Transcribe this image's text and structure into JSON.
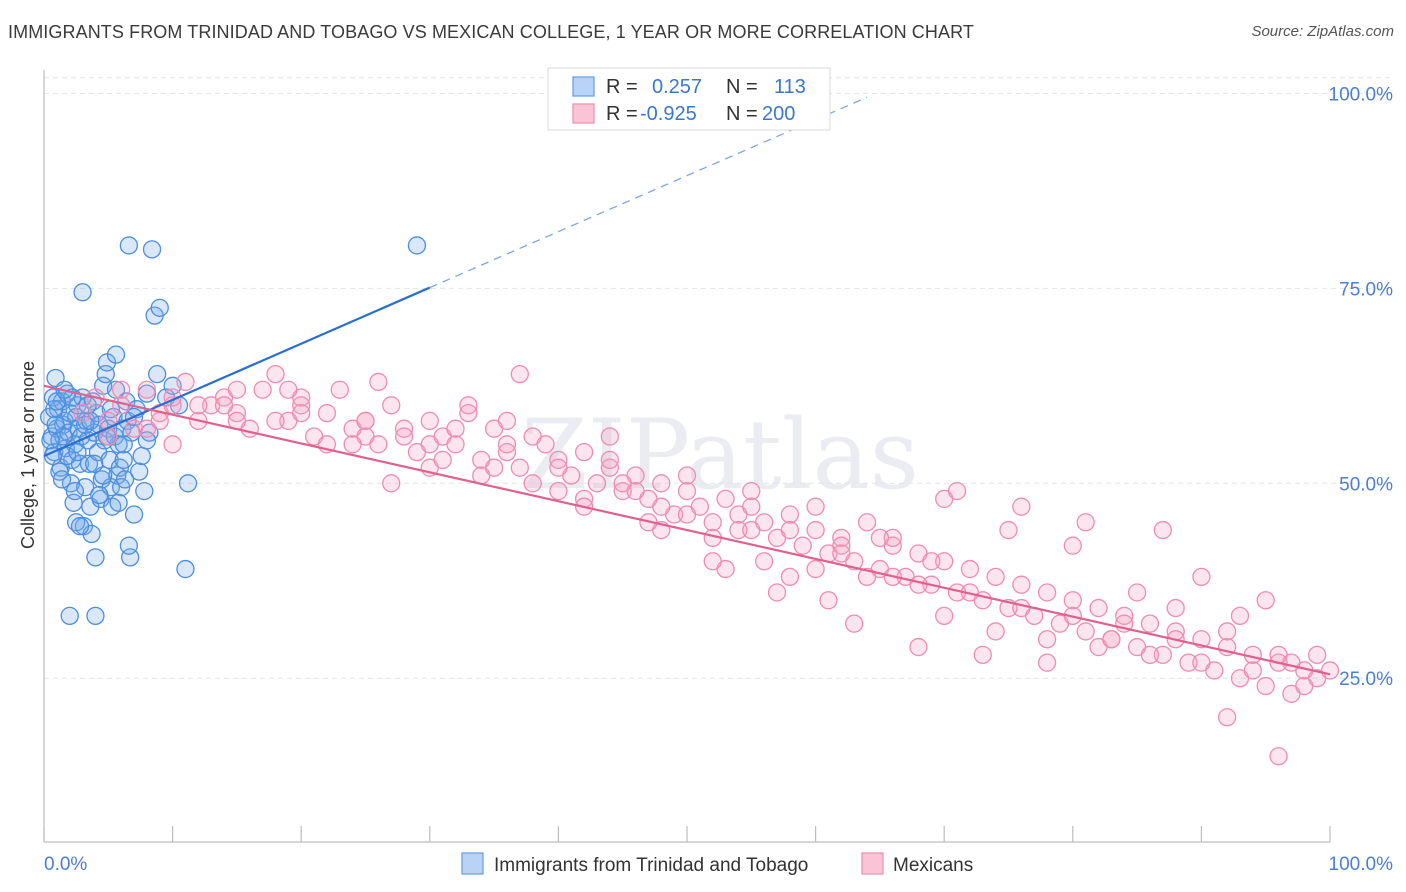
{
  "title": "IMMIGRANTS FROM TRINIDAD AND TOBAGO VS MEXICAN COLLEGE, 1 YEAR OR MORE CORRELATION CHART",
  "source": "Source: ZipAtlas.com",
  "watermark": "ZIPatlas",
  "colors": {
    "blue": "#4a8fe0",
    "blue_line": "#2a6fcf",
    "pink": "#f08cb0",
    "pink_line": "#e0608e",
    "tick_text": "#4a7fd0"
  },
  "legend": {
    "r_label": "R =",
    "n_label": "N =",
    "rows": [
      {
        "r": "0.257",
        "n": "113",
        "color": "blue"
      },
      {
        "r": "-0.925",
        "n": "200",
        "color": "pink"
      }
    ]
  },
  "bottom_legend": [
    "Immigrants from Trinidad and Tobago",
    "Mexicans"
  ],
  "chart_data": {
    "type": "scatter",
    "title": "IMMIGRANTS FROM TRINIDAD AND TOBAGO VS MEXICAN COLLEGE, 1 YEAR OR MORE CORRELATION CHART",
    "xlabel": "",
    "ylabel": "College, 1 year or more",
    "x_tick_labels": [
      "0.0%",
      "100.0%"
    ],
    "y_tick_labels": [
      "25.0%",
      "50.0%",
      "75.0%",
      "100.0%"
    ],
    "y_ticks": [
      25,
      50,
      75,
      100
    ],
    "xlim": [
      0,
      100
    ],
    "ylim": [
      4,
      103
    ],
    "grid": true,
    "legend_position": "top-center",
    "series": [
      {
        "name": "Immigrants from Trinidad and Tobago",
        "color": "#4a8fe0",
        "trend": {
          "x": [
            0,
            30
          ],
          "y": [
            53.5,
            75.1
          ],
          "dashed_to": [
            64.0,
            99.5
          ]
        },
        "points": [
          [
            0.4,
            58.5
          ],
          [
            0.6,
            56.0
          ],
          [
            0.7,
            61.0
          ],
          [
            0.8,
            54.0
          ],
          [
            0.9,
            63.5
          ],
          [
            1.0,
            57.0
          ],
          [
            1.1,
            59.5
          ],
          [
            1.2,
            55.5
          ],
          [
            1.3,
            52.0
          ],
          [
            1.4,
            60.5
          ],
          [
            1.5,
            57.5
          ],
          [
            1.6,
            58.0
          ],
          [
            1.7,
            54.5
          ],
          [
            1.8,
            61.5
          ],
          [
            1.9,
            56.5
          ],
          [
            2.0,
            59.0
          ],
          [
            2.1,
            50.0
          ],
          [
            2.2,
            53.0
          ],
          [
            2.3,
            47.5
          ],
          [
            2.4,
            55.0
          ],
          [
            2.5,
            58.5
          ],
          [
            2.6,
            60.0
          ],
          [
            2.7,
            57.0
          ],
          [
            2.8,
            52.5
          ],
          [
            2.9,
            56.0
          ],
          [
            3.0,
            61.0
          ],
          [
            3.1,
            44.5
          ],
          [
            3.2,
            49.5
          ],
          [
            3.3,
            58.0
          ],
          [
            3.4,
            55.5
          ],
          [
            3.5,
            52.5
          ],
          [
            3.6,
            47.0
          ],
          [
            3.7,
            43.5
          ],
          [
            3.8,
            60.5
          ],
          [
            3.9,
            56.5
          ],
          [
            4.0,
            40.5
          ],
          [
            4.1,
            59.0
          ],
          [
            4.2,
            54.0
          ],
          [
            4.3,
            57.5
          ],
          [
            4.4,
            48.0
          ],
          [
            4.5,
            50.5
          ],
          [
            4.6,
            62.5
          ],
          [
            4.7,
            55.5
          ],
          [
            4.8,
            64.0
          ],
          [
            4.9,
            65.5
          ],
          [
            5.0,
            57.0
          ],
          [
            5.1,
            53.0
          ],
          [
            5.2,
            49.5
          ],
          [
            5.3,
            47.0
          ],
          [
            5.4,
            58.5
          ],
          [
            5.5,
            56.0
          ],
          [
            5.6,
            66.5
          ],
          [
            5.7,
            51.0
          ],
          [
            5.8,
            55.0
          ],
          [
            5.9,
            52.0
          ],
          [
            6.0,
            49.5
          ],
          [
            6.1,
            57.0
          ],
          [
            6.2,
            53.0
          ],
          [
            6.3,
            50.5
          ],
          [
            6.4,
            60.5
          ],
          [
            6.5,
            58.0
          ],
          [
            6.6,
            80.5
          ],
          [
            6.7,
            40.5
          ],
          [
            6.8,
            56.5
          ],
          [
            7.0,
            46.0
          ],
          [
            7.2,
            59.5
          ],
          [
            7.4,
            51.5
          ],
          [
            7.6,
            53.5
          ],
          [
            7.8,
            49.0
          ],
          [
            8.0,
            61.5
          ],
          [
            8.2,
            56.5
          ],
          [
            8.4,
            80.0
          ],
          [
            8.6,
            71.5
          ],
          [
            8.8,
            64.0
          ],
          [
            9.0,
            72.5
          ],
          [
            9.5,
            61.0
          ],
          [
            10.0,
            62.5
          ],
          [
            10.5,
            60.0
          ],
          [
            11.0,
            39.0
          ],
          [
            11.2,
            50.0
          ],
          [
            2.0,
            33.0
          ],
          [
            4.0,
            33.0
          ],
          [
            3.0,
            74.5
          ],
          [
            2.5,
            45.0
          ],
          [
            1.5,
            56.0
          ],
          [
            0.8,
            59.5
          ],
          [
            1.2,
            51.5
          ],
          [
            2.2,
            61.0
          ],
          [
            3.2,
            57.5
          ],
          [
            1.8,
            53.5
          ],
          [
            0.5,
            55.5
          ],
          [
            2.8,
            44.5
          ],
          [
            1.0,
            60.5
          ],
          [
            3.6,
            58.0
          ],
          [
            4.6,
            51.0
          ],
          [
            5.2,
            59.5
          ],
          [
            2.4,
            49.0
          ],
          [
            1.6,
            62.0
          ],
          [
            0.9,
            57.5
          ],
          [
            3.9,
            52.5
          ],
          [
            6.2,
            55.0
          ],
          [
            4.3,
            48.5
          ],
          [
            5.6,
            62.0
          ],
          [
            2.6,
            54.0
          ],
          [
            1.4,
            50.5
          ],
          [
            3.4,
            60.0
          ],
          [
            0.7,
            53.5
          ],
          [
            4.9,
            56.0
          ],
          [
            7.0,
            58.5
          ],
          [
            8.0,
            55.5
          ],
          [
            6.6,
            42.0
          ],
          [
            29.0,
            80.5
          ],
          [
            5.8,
            47.5
          ]
        ]
      },
      {
        "name": "Mexicans",
        "color": "#f08cb0",
        "trend": {
          "x": [
            0,
            100
          ],
          "y": [
            62.5,
            25.5
          ]
        },
        "points": [
          [
            3,
            59
          ],
          [
            4,
            61
          ],
          [
            5,
            58
          ],
          [
            6,
            60
          ],
          [
            7,
            57
          ],
          [
            8,
            62
          ],
          [
            9,
            59
          ],
          [
            10,
            60
          ],
          [
            11,
            63
          ],
          [
            12,
            58
          ],
          [
            13,
            60
          ],
          [
            14,
            61
          ],
          [
            15,
            59
          ],
          [
            16,
            57
          ],
          [
            17,
            62
          ],
          [
            18,
            64
          ],
          [
            19,
            58
          ],
          [
            20,
            60
          ],
          [
            21,
            56
          ],
          [
            22,
            59
          ],
          [
            23,
            62
          ],
          [
            24,
            57
          ],
          [
            25,
            58
          ],
          [
            26,
            55
          ],
          [
            27,
            60
          ],
          [
            28,
            57
          ],
          [
            29,
            54
          ],
          [
            30,
            58
          ],
          [
            31,
            56
          ],
          [
            32,
            55
          ],
          [
            33,
            59
          ],
          [
            34,
            53
          ],
          [
            35,
            57
          ],
          [
            36,
            54
          ],
          [
            37,
            52
          ],
          [
            38,
            56
          ],
          [
            39,
            55
          ],
          [
            40,
            53
          ],
          [
            41,
            51
          ],
          [
            42,
            54
          ],
          [
            43,
            50
          ],
          [
            44,
            52
          ],
          [
            45,
            49
          ],
          [
            46,
            51
          ],
          [
            47,
            48
          ],
          [
            48,
            50
          ],
          [
            49,
            46
          ],
          [
            50,
            49
          ],
          [
            51,
            47
          ],
          [
            52,
            45
          ],
          [
            53,
            48
          ],
          [
            54,
            44
          ],
          [
            55,
            47
          ],
          [
            56,
            45
          ],
          [
            57,
            43
          ],
          [
            58,
            46
          ],
          [
            59,
            42
          ],
          [
            60,
            44
          ],
          [
            61,
            41
          ],
          [
            62,
            43
          ],
          [
            63,
            40
          ],
          [
            64,
            45
          ],
          [
            65,
            39
          ],
          [
            66,
            42
          ],
          [
            67,
            38
          ],
          [
            68,
            41
          ],
          [
            69,
            37
          ],
          [
            70,
            40
          ],
          [
            71,
            36
          ],
          [
            72,
            39
          ],
          [
            73,
            35
          ],
          [
            74,
            38
          ],
          [
            75,
            34
          ],
          [
            76,
            37
          ],
          [
            77,
            33
          ],
          [
            78,
            36
          ],
          [
            79,
            32
          ],
          [
            80,
            35
          ],
          [
            81,
            31
          ],
          [
            82,
            34
          ],
          [
            83,
            30
          ],
          [
            84,
            33
          ],
          [
            85,
            29
          ],
          [
            86,
            32
          ],
          [
            87,
            28
          ],
          [
            88,
            31
          ],
          [
            89,
            27
          ],
          [
            90,
            30
          ],
          [
            91,
            26
          ],
          [
            92,
            29
          ],
          [
            93,
            25
          ],
          [
            94,
            28
          ],
          [
            95,
            24
          ],
          [
            96,
            27
          ],
          [
            97,
            23
          ],
          [
            98,
            26
          ],
          [
            99,
            25
          ],
          [
            100,
            26
          ],
          [
            96,
            15
          ],
          [
            92,
            20
          ],
          [
            5,
            56
          ],
          [
            8,
            57
          ],
          [
            10,
            55
          ],
          [
            12,
            60
          ],
          [
            15,
            62
          ],
          [
            18,
            58
          ],
          [
            20,
            59
          ],
          [
            22,
            55
          ],
          [
            25,
            58
          ],
          [
            28,
            56
          ],
          [
            30,
            52
          ],
          [
            32,
            57
          ],
          [
            34,
            51
          ],
          [
            36,
            55
          ],
          [
            38,
            50
          ],
          [
            40,
            52
          ],
          [
            42,
            48
          ],
          [
            44,
            53
          ],
          [
            46,
            49
          ],
          [
            48,
            47
          ],
          [
            50,
            51
          ],
          [
            52,
            43
          ],
          [
            54,
            46
          ],
          [
            56,
            40
          ],
          [
            58,
            44
          ],
          [
            60,
            39
          ],
          [
            62,
            42
          ],
          [
            64,
            38
          ],
          [
            66,
            43
          ],
          [
            68,
            37
          ],
          [
            70,
            33
          ],
          [
            72,
            36
          ],
          [
            74,
            31
          ],
          [
            76,
            34
          ],
          [
            78,
            30
          ],
          [
            80,
            33
          ],
          [
            82,
            29
          ],
          [
            84,
            32
          ],
          [
            86,
            28
          ],
          [
            88,
            30
          ],
          [
            90,
            27
          ],
          [
            92,
            31
          ],
          [
            94,
            26
          ],
          [
            96,
            28
          ],
          [
            98,
            24
          ],
          [
            95,
            35
          ],
          [
            90,
            38
          ],
          [
            85,
            36
          ],
          [
            80,
            42
          ],
          [
            75,
            44
          ],
          [
            70,
            48
          ],
          [
            65,
            43
          ],
          [
            60,
            47
          ],
          [
            55,
            44
          ],
          [
            50,
            46
          ],
          [
            45,
            50
          ],
          [
            40,
            49
          ],
          [
            35,
            52
          ],
          [
            30,
            55
          ],
          [
            25,
            56
          ],
          [
            20,
            61
          ],
          [
            15,
            58
          ],
          [
            10,
            61
          ],
          [
            26,
            63
          ],
          [
            33,
            60
          ],
          [
            37,
            64
          ],
          [
            48,
            44
          ],
          [
            53,
            39
          ],
          [
            58,
            38
          ],
          [
            63,
            32
          ],
          [
            68,
            29
          ],
          [
            73,
            28
          ],
          [
            78,
            27
          ],
          [
            83,
            30
          ],
          [
            88,
            34
          ],
          [
            93,
            33
          ],
          [
            97,
            27
          ],
          [
            99,
            28
          ],
          [
            87,
            44
          ],
          [
            81,
            45
          ],
          [
            76,
            47
          ],
          [
            71,
            49
          ],
          [
            66,
            38
          ],
          [
            61,
            35
          ],
          [
            57,
            36
          ],
          [
            52,
            40
          ],
          [
            47,
            45
          ],
          [
            42,
            47
          ],
          [
            36,
            58
          ],
          [
            31,
            53
          ],
          [
            27,
            50
          ],
          [
            24,
            55
          ],
          [
            19,
            62
          ],
          [
            14,
            60
          ],
          [
            9,
            58
          ],
          [
            6,
            62
          ],
          [
            44,
            56
          ],
          [
            55,
            49
          ],
          [
            62,
            41
          ],
          [
            69,
            40
          ]
        ]
      }
    ]
  }
}
